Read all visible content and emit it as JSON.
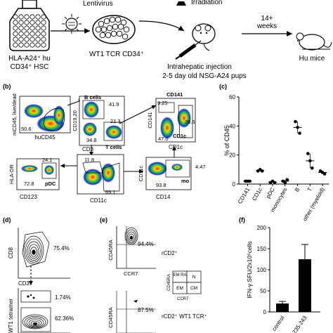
{
  "panel_a": {
    "labels": {
      "lentivirus": "Lentivirus",
      "irradiation": "Irradiation",
      "hsc_line1": "HLA-A24⁺ hu",
      "hsc_line2": "CD34⁺ HSC",
      "transduced": "WT1 TCR CD34⁺",
      "injection_line1": "Intrahepatic injection",
      "injection_line2": "2-5 day old NSG-A24 pups",
      "weeks_line1": "14+",
      "weeks_line2": "weeks",
      "mice": "Hu mice"
    }
  },
  "panel_b": {
    "letter": "(b)",
    "plots": {
      "p1": {
        "xlabel": "huCD45",
        "ylabel": "mCD45, live/dead",
        "values": [
          "50.6"
        ]
      },
      "p2": {
        "xlabel": "CD3",
        "ylabel": "CD19,20",
        "gate_top": "B cells",
        "gate_bottom": "T cells",
        "values": [
          "41.9",
          "21.3",
          "34.8"
        ]
      },
      "p3": {
        "xlabel": "CD1c",
        "ylabel": "CD141",
        "gate_top": "CD141",
        "gate_bottom": "CD1c",
        "values": [
          "9.25",
          "38.6",
          "47.0"
        ]
      },
      "p4": {
        "xlabel": "CD123",
        "ylabel": "HLA-DR",
        "gate": "pDC",
        "values": [
          "24.1",
          "72.8"
        ]
      },
      "p5": {
        "xlabel": "CD11c",
        "ylabel": "",
        "values": [
          "11.8",
          "69.1"
        ]
      },
      "p6": {
        "xlabel": "CD14",
        "ylabel": "CD11c",
        "gate": "mo",
        "values": [
          "4.47",
          "93.8"
        ]
      }
    }
  },
  "panel_c": {
    "letter": "(c)",
    "chart_data": {
      "type": "scatter",
      "ylabel": "% of CD45",
      "ylim": [
        0,
        60
      ],
      "yticks": [
        0,
        20,
        40,
        60
      ],
      "categories": [
        "CD141",
        "CD1c",
        "pDC",
        "monocytes",
        "B",
        "T",
        "other (myeloid)"
      ],
      "points": [
        [
          2,
          2,
          2
        ],
        [
          9,
          10,
          9
        ],
        [
          1,
          2,
          1
        ],
        [
          2,
          1,
          3
        ],
        [
          43,
          39,
          35
        ],
        [
          21,
          16,
          11
        ],
        [
          9,
          8,
          7
        ]
      ],
      "means": [
        2,
        9.3,
        1.3,
        2,
        39,
        16,
        8
      ]
    }
  },
  "panel_d": {
    "letter": "(d)",
    "p1": {
      "ylabel": "CD8",
      "value": "75.4%"
    },
    "p2": {
      "ylabel": "WT1 tetramer",
      "xlabel": "CD3",
      "values": [
        "1.74%",
        "62.36%"
      ]
    }
  },
  "panel_e": {
    "letter": "(e)",
    "p1": {
      "ylabel": "CD45RA",
      "xlabel": "CCR7",
      "value": "94.4%",
      "label": "rCD2⁺"
    },
    "p2": {
      "ylabel": "CD45RA",
      "value": "87.5%",
      "label": "rCD2⁺ WT1 TCR⁺"
    },
    "legend": {
      "axis_y": "CD45RA",
      "axis_x": "CCR7",
      "cells": [
        "EM RA",
        "N",
        "EM",
        "CM"
      ]
    }
  },
  "panel_f": {
    "letter": "(f)",
    "chart_data": {
      "type": "bar",
      "ylabel": "IFN-γ SFU/2x10⁵cells",
      "ylim": [
        0,
        200
      ],
      "yticks": [
        0,
        50,
        100,
        150,
        200
      ],
      "categories": [
        "control",
        "235-243"
      ],
      "values": [
        20,
        125
      ],
      "errors": [
        5,
        35
      ]
    }
  },
  "colors": {
    "dens_hi": "#ff2200",
    "dens_mid": "#ffd000",
    "dens_lo": "#15c050",
    "dens_bg": "#1e2fd8",
    "bar": "#000000"
  }
}
